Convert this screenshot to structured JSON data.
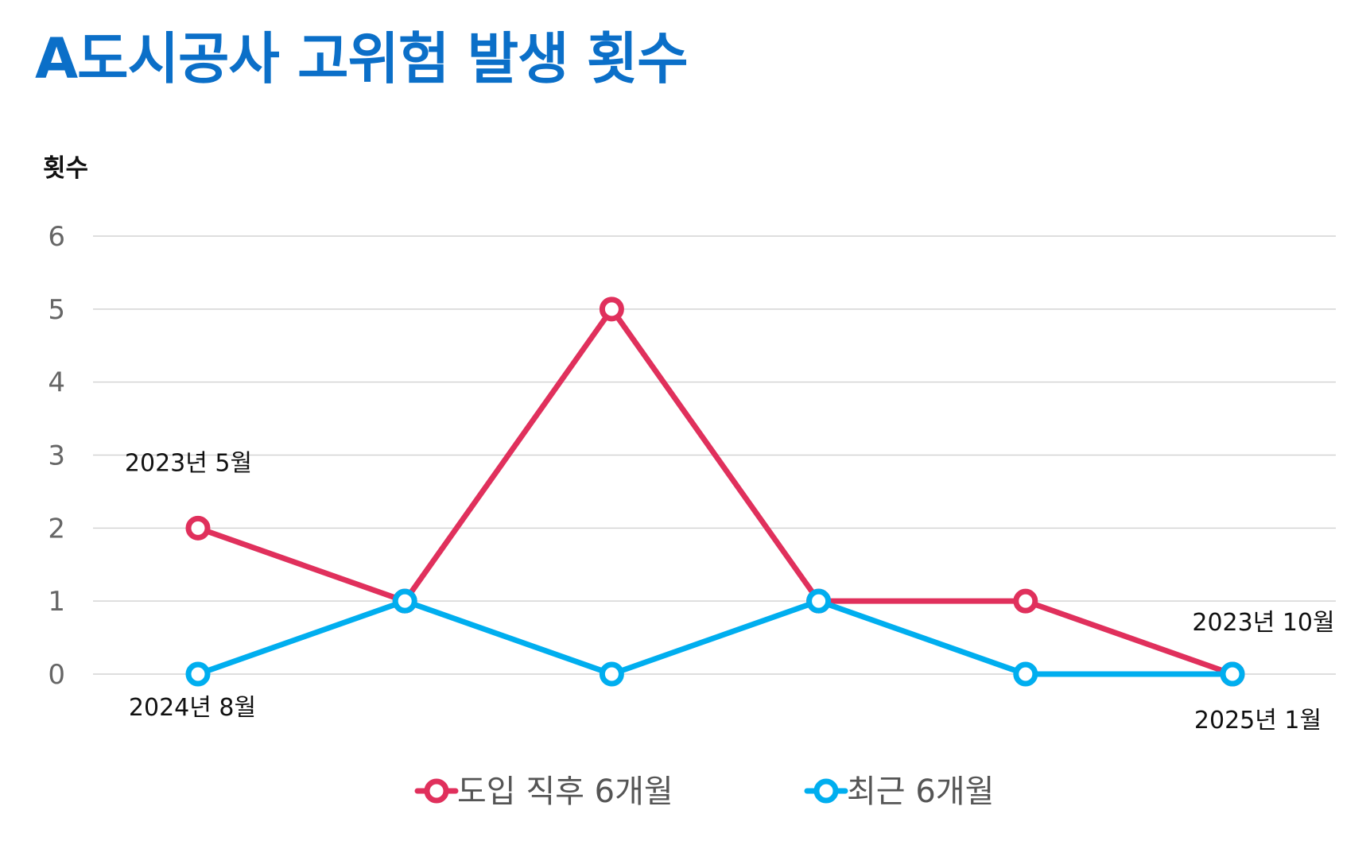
{
  "title": "A도시공사 고위험 발생 횟수",
  "chart_data": {
    "type": "line",
    "ylabel": "횟수",
    "xlabel": "",
    "ylim": [
      0,
      6
    ],
    "yticks": [
      "0",
      "1",
      "2",
      "3",
      "4",
      "5",
      "6"
    ],
    "grid": true,
    "x": [
      1,
      2,
      3,
      4,
      5,
      6
    ],
    "series": [
      {
        "name": "도입 직후 6개월",
        "color": "#e0305c",
        "values": [
          2,
          1,
          5,
          1,
          1,
          0
        ],
        "start_label": "2023년 5월",
        "end_label": "2023년 10월"
      },
      {
        "name": "최근 6개월",
        "color": "#00aeef",
        "values": [
          0,
          1,
          0,
          1,
          0,
          0
        ],
        "start_label": "2024년 8월",
        "end_label": "2025년 1월"
      }
    ],
    "legend_position": "bottom"
  }
}
